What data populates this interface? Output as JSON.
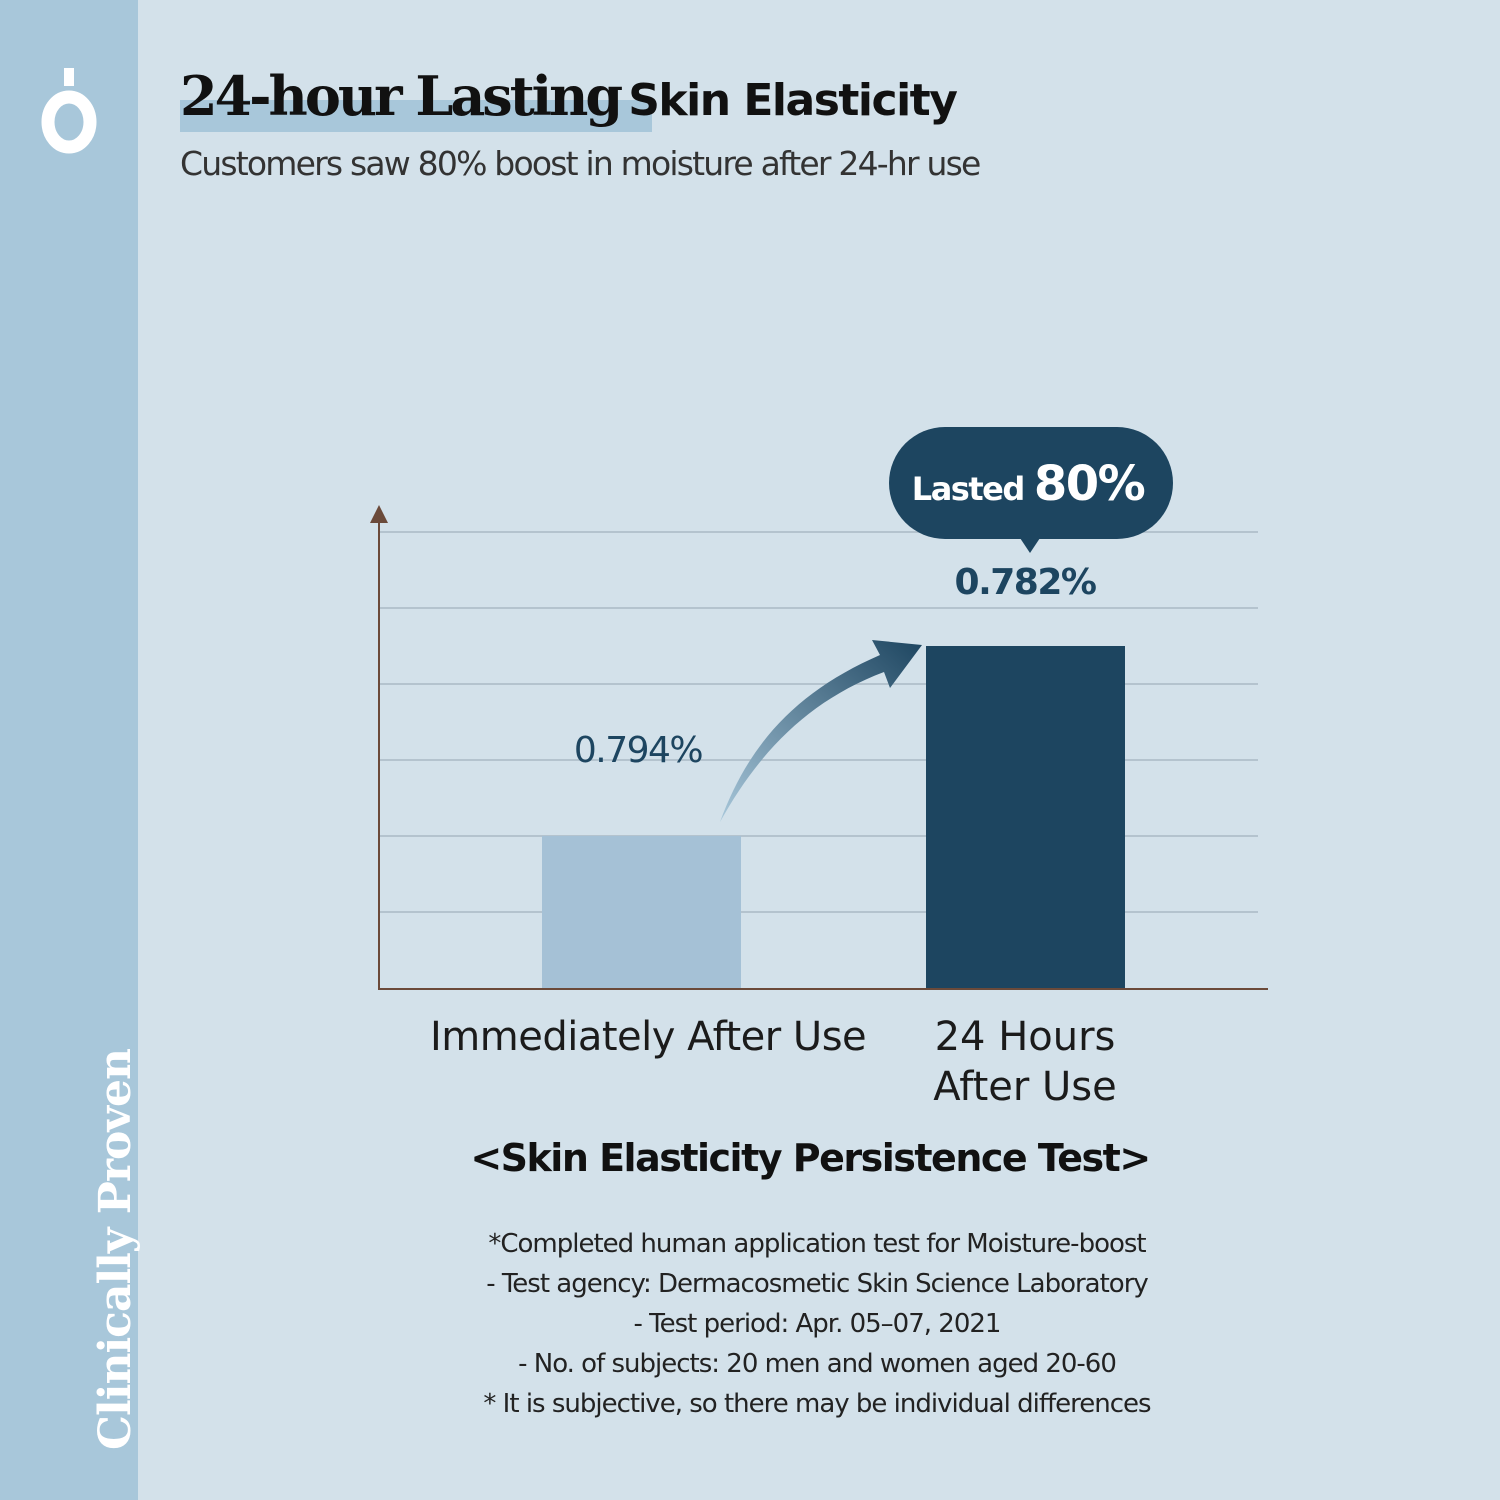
{
  "brand": {
    "logo_icon": "droplet-o-logo-icon",
    "side_text": "Clinically Proven"
  },
  "header": {
    "title_highlight": "24-hour Lasting",
    "title_rest": "Skin Elasticity",
    "subtitle": "Customers saw 80% boost in moisture after 24-hr use"
  },
  "chart_data": {
    "type": "bar",
    "title": "<Skin Elasticity Persistence Test>",
    "categories": [
      "Immediately After Use",
      "24 Hours After Use"
    ],
    "category_lines": [
      [
        "Immediately After Use"
      ],
      [
        "24 Hours",
        "After Use"
      ]
    ],
    "values": [
      0.794,
      0.782
    ],
    "value_labels": [
      "0.794%",
      "0.782%"
    ],
    "colors": [
      "#a5c1d6",
      "#1d4560"
    ],
    "grid": true,
    "callout": {
      "prefix": "Lasted",
      "value": "80%"
    },
    "arrow": "curved arrow from first bar to second bar"
  },
  "notes": [
    "*Completed human application test for Moisture-boost",
    "- Test agency: Dermacosmetic Skin Science Laboratory",
    "- Test period: Apr. 05–07, 2021",
    "- No. of subjects: 20 men and women aged 20-60",
    "* It is subjective, so there may be individual differences"
  ]
}
